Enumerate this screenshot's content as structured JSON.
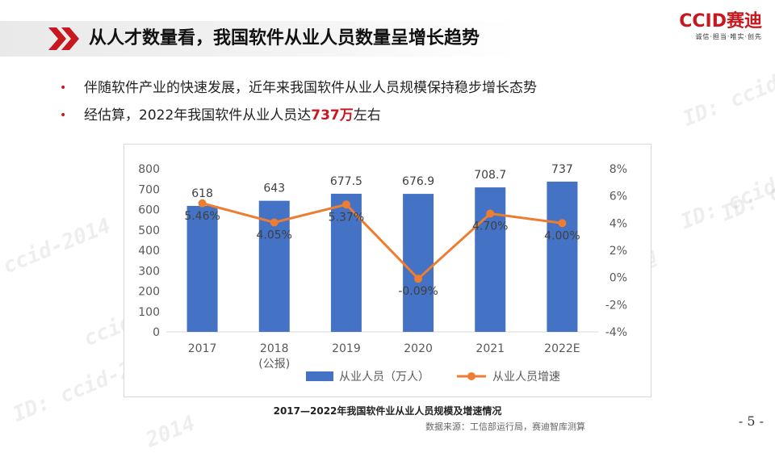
{
  "header": {
    "title": "从人才数量看，我国软件从业人员数量呈增长趋势"
  },
  "logo": {
    "main": "CCID赛迪",
    "sub": "诚信·担当·唯实·创先"
  },
  "bullets": [
    {
      "text": "伴随软件产业的快速发展，近年来我国软件从业人员规模保持稳步增长态势"
    },
    {
      "prefix": "经估算，2022年我国软件从业人员达",
      "highlight": "737万",
      "suffix": "左右"
    }
  ],
  "chart_data": {
    "type": "bar+line",
    "categories": [
      "2017",
      "2018\n(公报)",
      "2019",
      "2020",
      "2021",
      "2022E"
    ],
    "series": [
      {
        "name": "从业人员（万人）",
        "type": "bar",
        "axis": "left",
        "values": [
          618,
          643,
          677.5,
          676.9,
          708.7,
          737
        ],
        "labels": [
          "618",
          "643",
          "677.5",
          "676.9",
          "708.7",
          "737"
        ]
      },
      {
        "name": "从业人员增速",
        "type": "line",
        "axis": "right",
        "values": [
          5.46,
          4.05,
          5.37,
          -0.09,
          4.7,
          4.0
        ],
        "labels": [
          "5.46%",
          "4.05%",
          "5.37%",
          "-0.09%",
          "4.70%",
          "4.00%"
        ]
      }
    ],
    "y_left": {
      "min": 0,
      "max": 800,
      "ticks": [
        "0",
        "100",
        "200",
        "300",
        "400",
        "500",
        "600",
        "700",
        "800"
      ]
    },
    "y_right": {
      "min": -4,
      "max": 8,
      "ticks": [
        "-4%",
        "-2%",
        "0%",
        "2%",
        "4%",
        "6%",
        "8%"
      ]
    },
    "grid": false,
    "legend": "bottom",
    "colors": {
      "bar": "#4472c4",
      "line": "#ed7d31"
    }
  },
  "caption": "2017—2022年我国软件业从业人员规模及增速情况",
  "source": "数据来源：工信部运行局，赛迪智库测算",
  "page_number": "- 5 -",
  "watermarks": [
    "CCID赛迪",
    "ccid-2014",
    "ID: ccid-2014",
    "CCID赛迪",
    "ID: ccid",
    "ccid-2014",
    "CCID赛迪",
    "ID: ccid-2014",
    "CCID赛迪",
    "ccid-2014",
    "ID: ccid",
    "ID: ccid",
    "2014"
  ]
}
